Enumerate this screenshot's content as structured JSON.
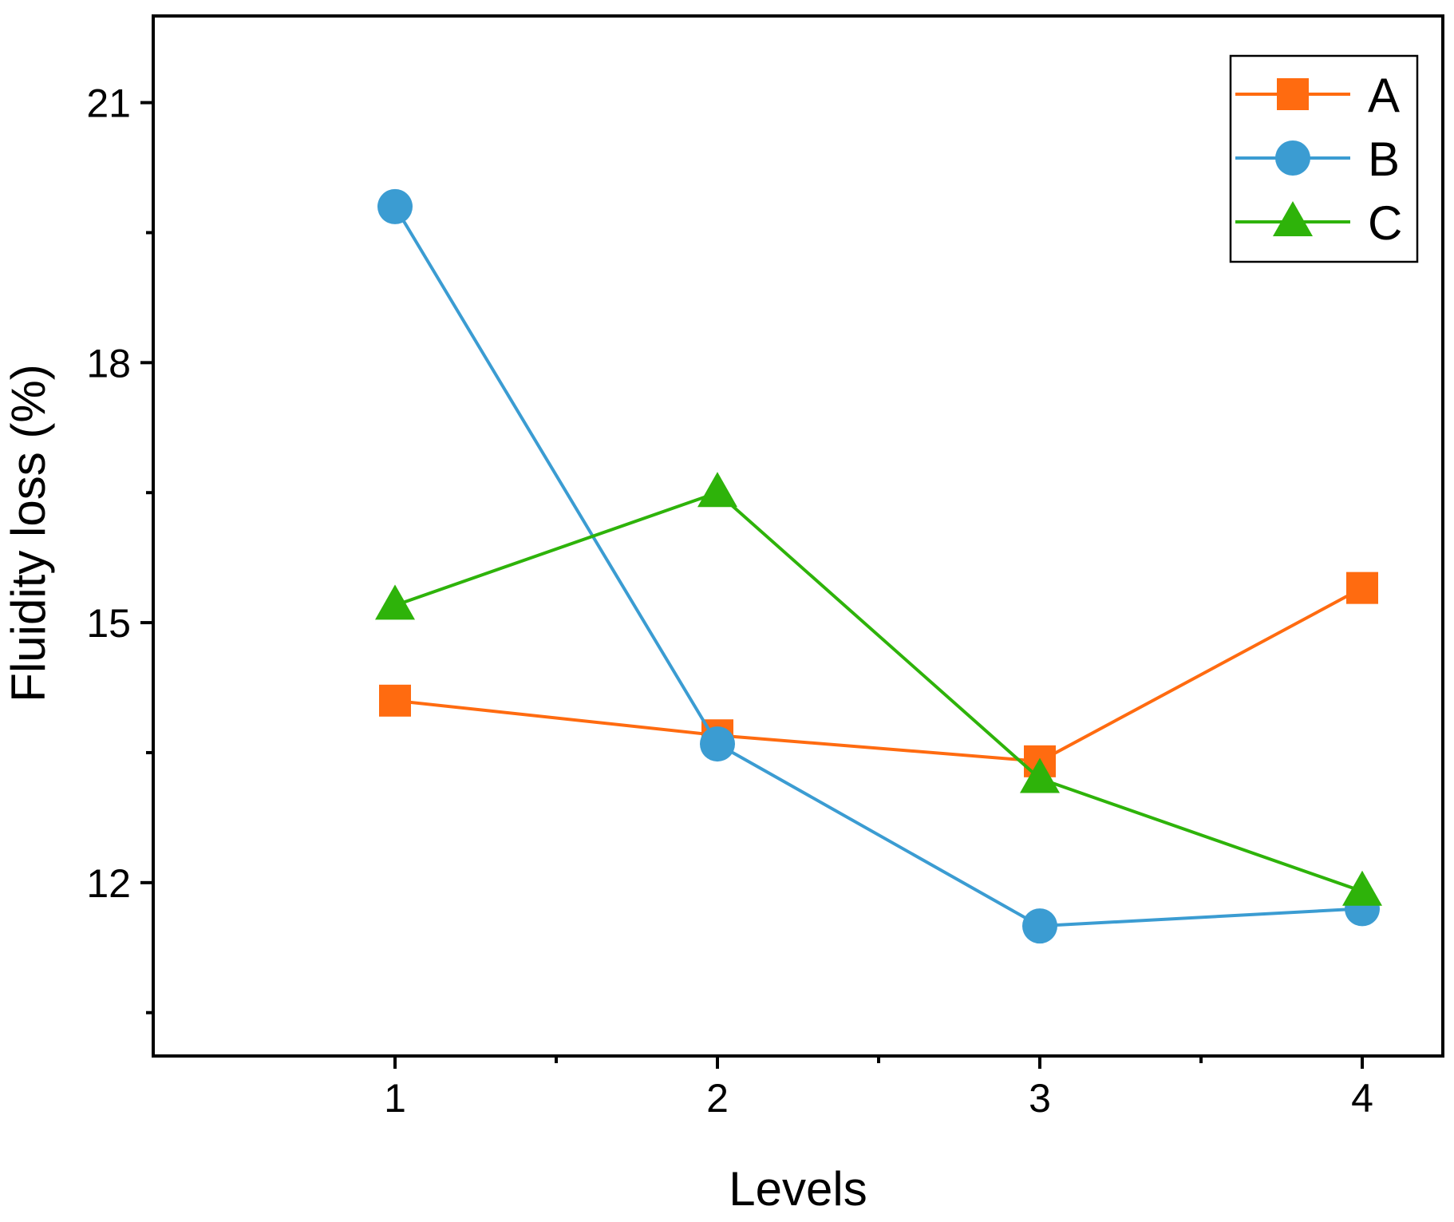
{
  "chart_data": {
    "type": "line",
    "title": "",
    "xlabel": "Levels",
    "ylabel": "Fluidity loss (%)",
    "x": [
      1,
      2,
      3,
      4
    ],
    "xlim": [
      0.25,
      4.25
    ],
    "ylim": [
      10,
      22
    ],
    "xticks": [
      1,
      2,
      3,
      4
    ],
    "xminor": [
      1.5,
      2.5,
      3.5
    ],
    "yticks": [
      12,
      15,
      18,
      21
    ],
    "yminor": [
      10.5,
      13.5,
      16.5,
      19.5
    ],
    "legend_position": "top-right",
    "series": [
      {
        "name": "A",
        "marker": "square",
        "color": "#ff6b10",
        "values": [
          14.1,
          13.7,
          13.4,
          15.4
        ]
      },
      {
        "name": "B",
        "marker": "circle",
        "color": "#3b9cd2",
        "values": [
          19.8,
          13.6,
          11.5,
          11.7
        ]
      },
      {
        "name": "C",
        "marker": "triangle",
        "color": "#2eb30a",
        "values": [
          15.2,
          16.5,
          13.2,
          11.9
        ]
      }
    ]
  }
}
